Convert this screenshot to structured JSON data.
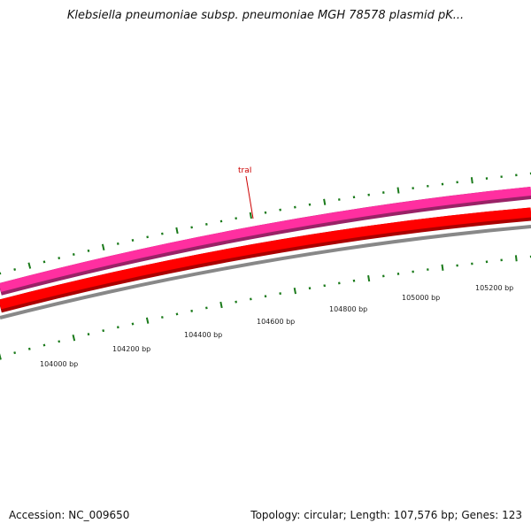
{
  "title": "Klebsiella pneumoniae subsp. pneumoniae MGH 78578 plasmid pK...",
  "footer": {
    "accession": "Accession: NC_009650",
    "summary": "Topology: circular; Length: 107,576 bp; Genes: 123"
  },
  "map": {
    "tick_labels": [
      "104000 bp",
      "104200 bp",
      "104400 bp",
      "104600 bp",
      "104800 bp",
      "105000 bp",
      "105200 bp"
    ],
    "gene_labels": [
      {
        "name": "traI",
        "color": "#cc0000"
      }
    ],
    "track_colors": {
      "outer_ticks": "#1a7a1a",
      "forward_genes": "#ff2fa0",
      "forward_shadow": "#992266",
      "reverse_genes": "#ff0000",
      "reverse_shadow": "#aa0000",
      "backbone": "#888888",
      "inner_ticks": "#1a7a1a"
    }
  }
}
